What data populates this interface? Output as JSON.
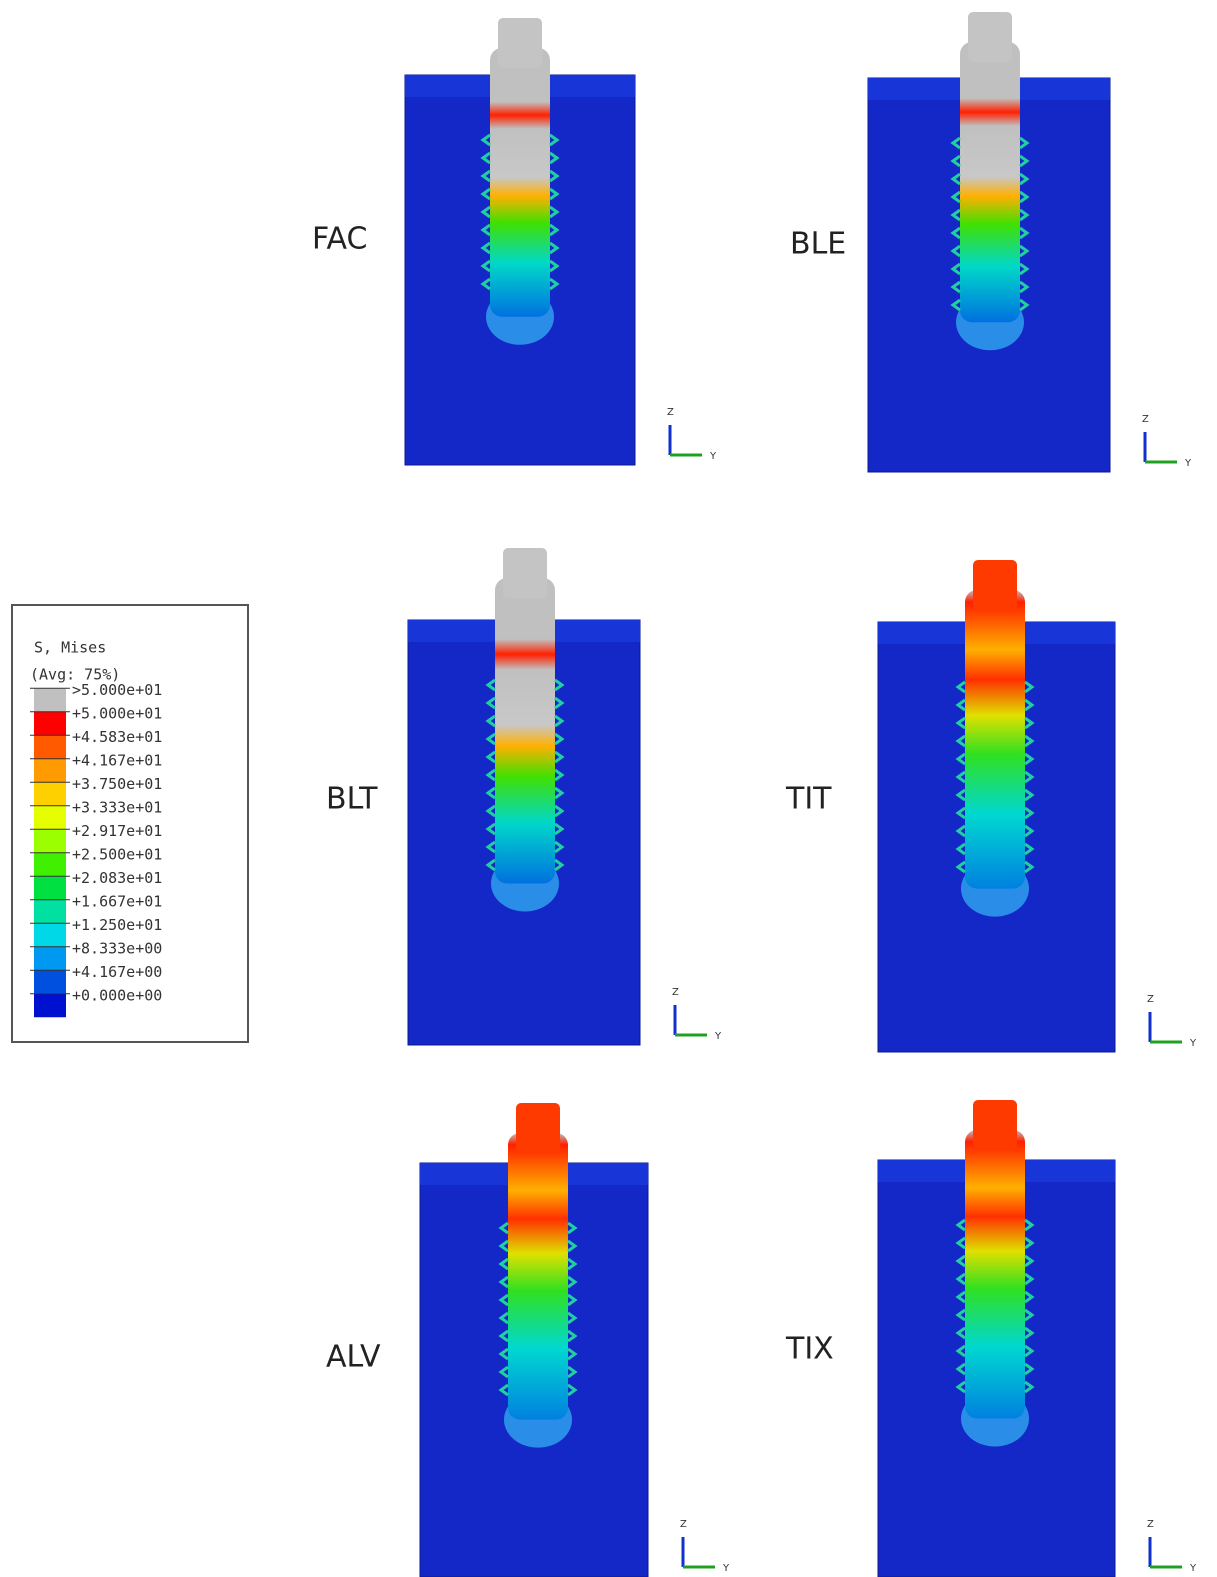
{
  "legend": {
    "title": "S, Mises",
    "subtitle": "(Avg: 75%)",
    "levels": [
      {
        "label": ">5.000e+01",
        "color": "#c0c0c0"
      },
      {
        "label": "+5.000e+01",
        "color": "#ff0000"
      },
      {
        "label": "+4.583e+01",
        "color": "#ff5a00"
      },
      {
        "label": "+4.167e+01",
        "color": "#ff9a00"
      },
      {
        "label": "+3.750e+01",
        "color": "#ffd000"
      },
      {
        "label": "+3.333e+01",
        "color": "#e6ff00"
      },
      {
        "label": "+2.917e+01",
        "color": "#9cff00"
      },
      {
        "label": "+2.500e+01",
        "color": "#40f000"
      },
      {
        "label": "+2.083e+01",
        "color": "#00e040"
      },
      {
        "label": "+1.667e+01",
        "color": "#00e0a0"
      },
      {
        "label": "+1.250e+01",
        "color": "#00d8e8"
      },
      {
        "label": "+8.333e+00",
        "color": "#0098f0"
      },
      {
        "label": "+4.167e+00",
        "color": "#0050e0"
      },
      {
        "label": "+0.000e+00",
        "color": "#0010d0"
      }
    ]
  },
  "triad": {
    "z": "Z",
    "y": "Y"
  },
  "panels": [
    {
      "label": "FAC"
    },
    {
      "label": "BLE"
    },
    {
      "label": "BLT"
    },
    {
      "label": "TIT"
    },
    {
      "label": "ALV"
    },
    {
      "label": "TIX"
    }
  ]
}
